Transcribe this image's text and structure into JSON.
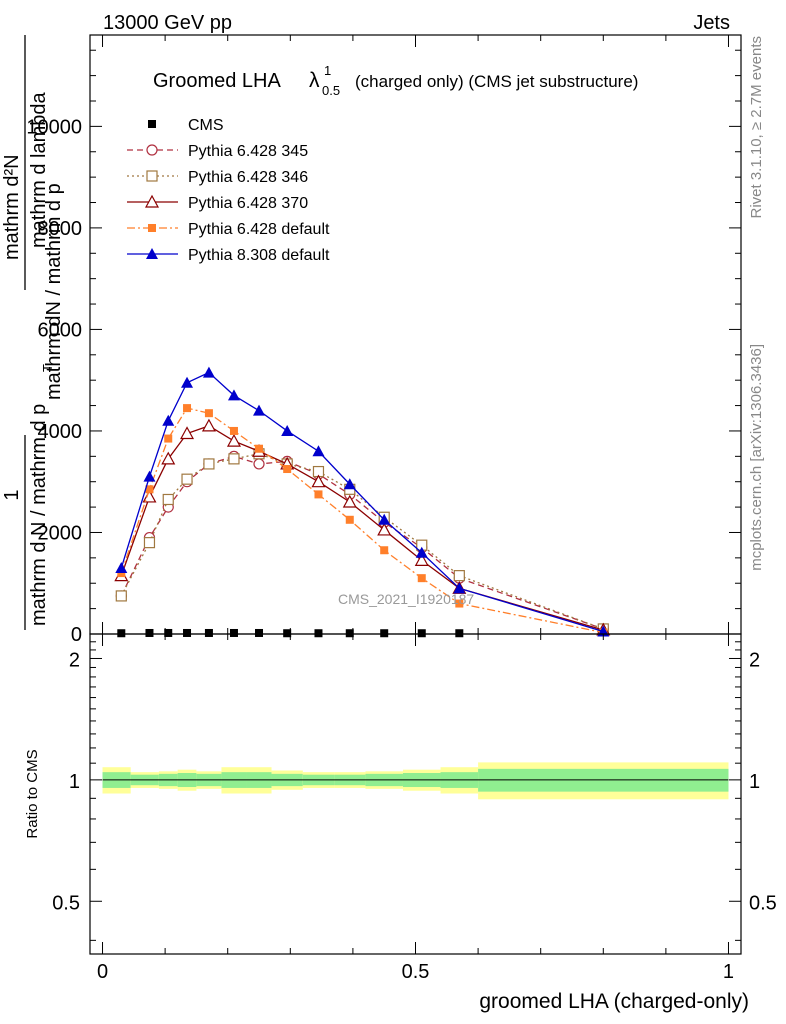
{
  "header": {
    "left": "13000 GeV pp",
    "right": "Jets"
  },
  "side_labels": {
    "rivet": "Rivet 3.1.10, ≥ 2.7M events",
    "mcplots": "mcplots.cern.ch [arXiv:1306.3436]"
  },
  "chart_data": [
    {
      "type": "line",
      "title_main": "Groomed LHA",
      "title_lambda": "λ",
      "title_sup": "1",
      "title_sub": "0.5",
      "title_rest": "(charged only) (CMS jet substructure)",
      "ylabel_top": "mathrm dN / mathrm d p",
      "ylabel_frac_numer": "mathrm d²N",
      "ylabel_frac_denom": "mathrm d p",
      "ylabel_frac_sub": "T",
      "ylabel_frac_tail": "mathrm d lambda",
      "ylabel_prefix_numer": "1",
      "ylabel_prefix_denom": "mathrm d N / mathrm d p",
      "ylabel_denom_sub": "T",
      "watermark": "CMS_2021_I1920187",
      "xlim": [
        -0.02,
        1.02
      ],
      "ylim": [
        0,
        11800
      ],
      "yticks": [
        0,
        2000,
        4000,
        6000,
        8000,
        10000
      ],
      "ytick_labels": [
        "0",
        "2000",
        "4000",
        "6000",
        "8000",
        "10000"
      ],
      "x": [
        0.03,
        0.075,
        0.105,
        0.135,
        0.17,
        0.21,
        0.25,
        0.295,
        0.345,
        0.395,
        0.45,
        0.51,
        0.57,
        0.8
      ],
      "series": [
        {
          "name": "CMS",
          "color": "#000000",
          "marker": "square-filled",
          "line": "none",
          "values": [
            15,
            20,
            20,
            20,
            20,
            20,
            20,
            15,
            15,
            15,
            15,
            15,
            15,
            null
          ]
        },
        {
          "name": "Pythia 6.428 345",
          "color": "#b03040",
          "marker": "circle-open",
          "line": "dashed",
          "values": [
            750,
            1900,
            2500,
            3000,
            3350,
            3500,
            3350,
            3400,
            3150,
            2750,
            2200,
            1700,
            1100,
            100
          ]
        },
        {
          "name": "Pythia 6.428 346",
          "color": "#a07840",
          "marker": "square-open",
          "line": "dotted",
          "values": [
            750,
            1800,
            2650,
            3050,
            3350,
            3450,
            3550,
            3350,
            3200,
            2850,
            2300,
            1750,
            1150,
            100
          ]
        },
        {
          "name": "Pythia 6.428 370",
          "color": "#8b0000",
          "marker": "triangle-open",
          "line": "solid",
          "values": [
            1150,
            2700,
            3450,
            3950,
            4100,
            3800,
            3600,
            3350,
            3000,
            2600,
            2050,
            1450,
            900,
            80
          ]
        },
        {
          "name": "Pythia 6.428 default",
          "color": "#ff7f2a",
          "marker": "square-filled",
          "line": "dashdot",
          "values": [
            1200,
            2850,
            3850,
            4450,
            4350,
            4000,
            3650,
            3250,
            2750,
            2250,
            1650,
            1100,
            600,
            30
          ]
        },
        {
          "name": "Pythia 8.308 default",
          "color": "#0000cc",
          "marker": "triangle-filled",
          "line": "solid",
          "values": [
            1300,
            3100,
            4200,
            4950,
            5150,
            4700,
            4400,
            4000,
            3600,
            2950,
            2250,
            1600,
            900,
            50
          ]
        }
      ]
    },
    {
      "type": "area",
      "ylabel": "Ratio to CMS",
      "xlabel": "groomed LHA (charged-only)",
      "xlim": [
        -0.02,
        1.02
      ],
      "ylim": [
        0.37,
        2.3
      ],
      "xticks": [
        0,
        0.5,
        1
      ],
      "xtick_labels": [
        "0",
        "0.5",
        "1"
      ],
      "yticks": [
        0.5,
        1,
        2
      ],
      "ytick_labels": [
        "0.5",
        "1",
        "2"
      ],
      "reference": 1,
      "bin_edges": [
        0,
        0.045,
        0.09,
        0.12,
        0.15,
        0.19,
        0.23,
        0.27,
        0.32,
        0.37,
        0.42,
        0.48,
        0.54,
        0.6,
        1.0
      ],
      "stat_band": {
        "color": "#90ee90",
        "low": [
          0.955,
          0.97,
          0.965,
          0.96,
          0.965,
          0.955,
          0.955,
          0.965,
          0.97,
          0.97,
          0.965,
          0.96,
          0.955,
          0.935
        ],
        "high": [
          1.045,
          1.03,
          1.035,
          1.04,
          1.035,
          1.045,
          1.045,
          1.035,
          1.03,
          1.03,
          1.035,
          1.04,
          1.045,
          1.065
        ]
      },
      "total_band": {
        "color": "#ffff99",
        "low": [
          0.925,
          0.955,
          0.95,
          0.94,
          0.95,
          0.925,
          0.925,
          0.945,
          0.955,
          0.955,
          0.95,
          0.94,
          0.925,
          0.895
        ],
        "high": [
          1.075,
          1.045,
          1.05,
          1.06,
          1.05,
          1.075,
          1.075,
          1.055,
          1.045,
          1.045,
          1.05,
          1.06,
          1.075,
          1.105
        ]
      }
    }
  ]
}
